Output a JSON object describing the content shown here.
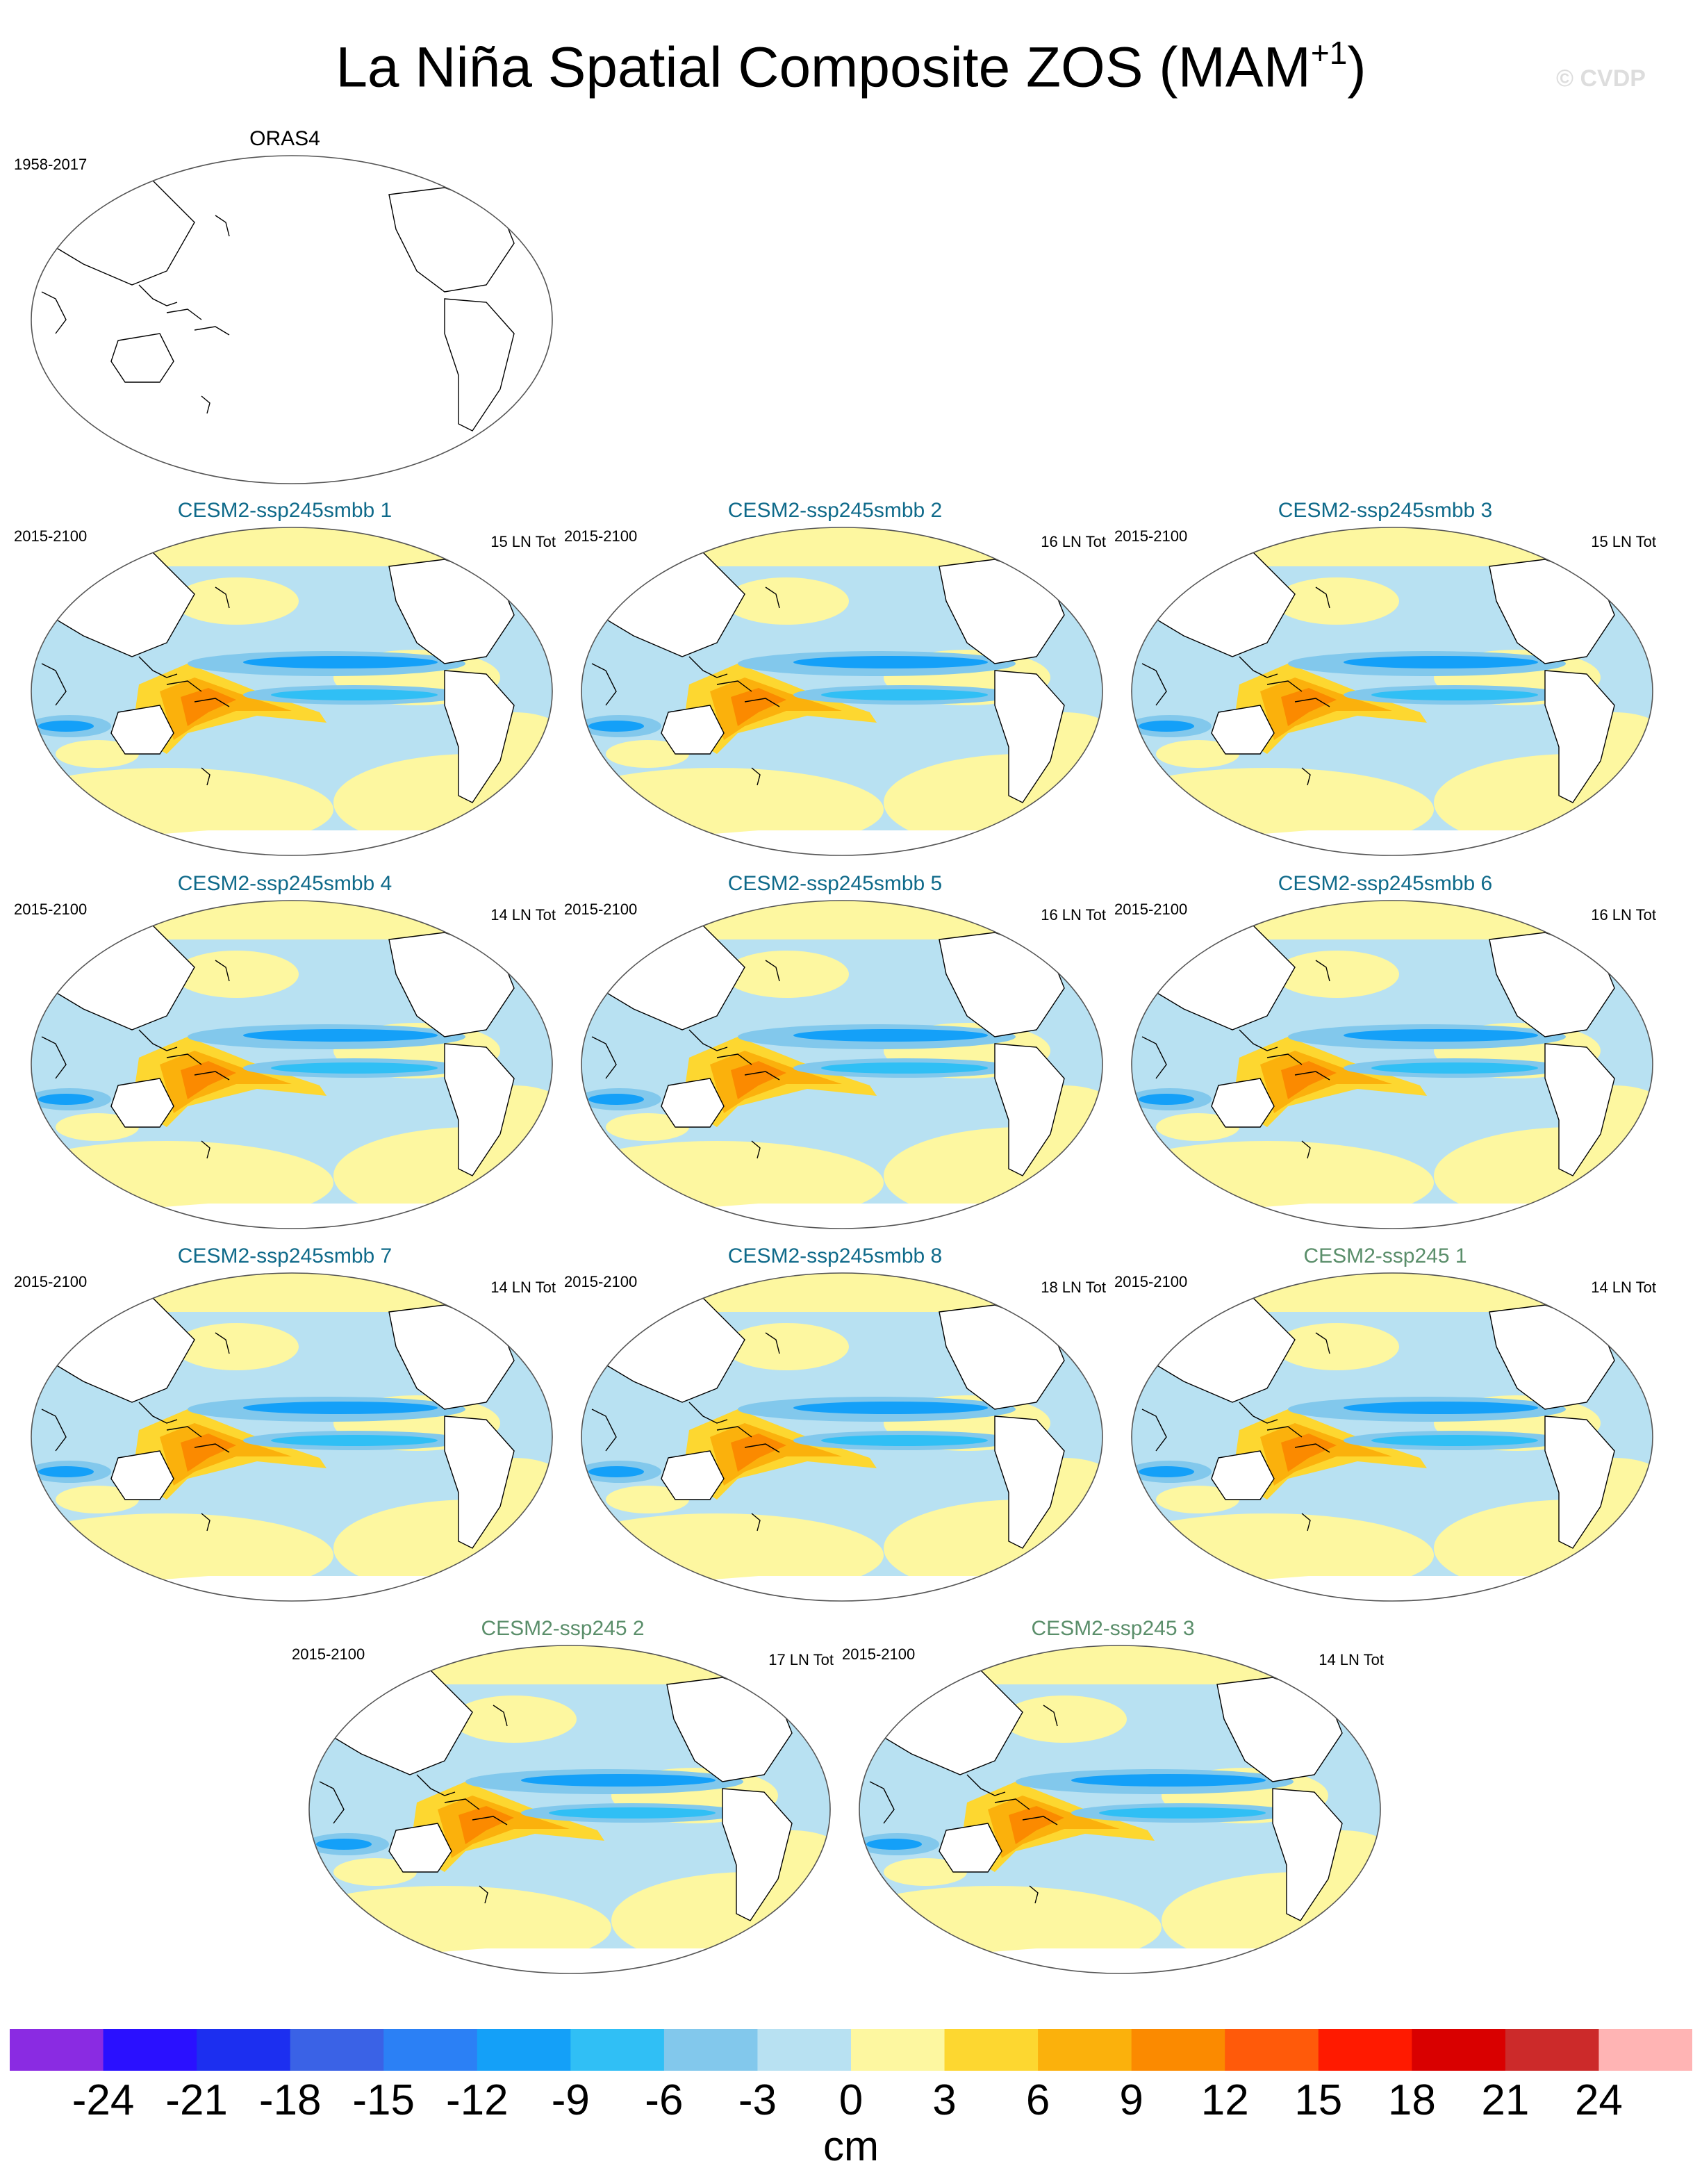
{
  "title": {
    "main": "La Niña Spatial Composite ZOS (MAM",
    "superscript": "+1",
    "close": ")"
  },
  "watermark": "© CVDP",
  "colors": {
    "model_title": "#0f6a8a",
    "model_title_alt": "#5a8e6a"
  },
  "panels": [
    {
      "name": "ORAS4",
      "period": "1958-2017",
      "count": "",
      "type": "observation"
    },
    {
      "name": "CESM2-ssp245smbb 1",
      "period": "2015-2100",
      "count": "15 LN Tot",
      "type": "model"
    },
    {
      "name": "CESM2-ssp245smbb 2",
      "period": "2015-2100",
      "count": "16 LN Tot",
      "type": "model"
    },
    {
      "name": "CESM2-ssp245smbb 3",
      "period": "2015-2100",
      "count": "15 LN Tot",
      "type": "model"
    },
    {
      "name": "CESM2-ssp245smbb 4",
      "period": "2015-2100",
      "count": "14 LN Tot",
      "type": "model"
    },
    {
      "name": "CESM2-ssp245smbb 5",
      "period": "2015-2100",
      "count": "16 LN Tot",
      "type": "model"
    },
    {
      "name": "CESM2-ssp245smbb 6",
      "period": "2015-2100",
      "count": "16 LN Tot",
      "type": "model"
    },
    {
      "name": "CESM2-ssp245smbb 7",
      "period": "2015-2100",
      "count": "14 LN Tot",
      "type": "model"
    },
    {
      "name": "CESM2-ssp245smbb 8",
      "period": "2015-2100",
      "count": "18 LN Tot",
      "type": "model"
    },
    {
      "name": "CESM2-ssp245 1",
      "period": "2015-2100",
      "count": "14 LN Tot",
      "type": "model_alt"
    },
    {
      "name": "CESM2-ssp245 2",
      "period": "2015-2100",
      "count": "17 LN Tot",
      "type": "model_alt"
    },
    {
      "name": "CESM2-ssp245 3",
      "period": "2015-2100",
      "count": "14 LN Tot",
      "type": "model_alt"
    }
  ],
  "colorbar": {
    "unit": "cm",
    "labels": [
      "-24",
      "-21",
      "-18",
      "-15",
      "-12",
      "-9",
      "-6",
      "-3",
      "0",
      "3",
      "6",
      "9",
      "12",
      "15",
      "18",
      "21",
      "24"
    ],
    "colors": [
      "#8a2be2",
      "#2a10ff",
      "#1c2ff0",
      "#3a62e6",
      "#2b80f5",
      "#14a0f8",
      "#30bff5",
      "#82c8ec",
      "#b8e1f2",
      "#fdf7a0",
      "#fdd730",
      "#fbb10c",
      "#fb8a00",
      "#ff5a0a",
      "#ff1a00",
      "#d90000",
      "#cc2a2a",
      "#ffb4b4"
    ]
  }
}
